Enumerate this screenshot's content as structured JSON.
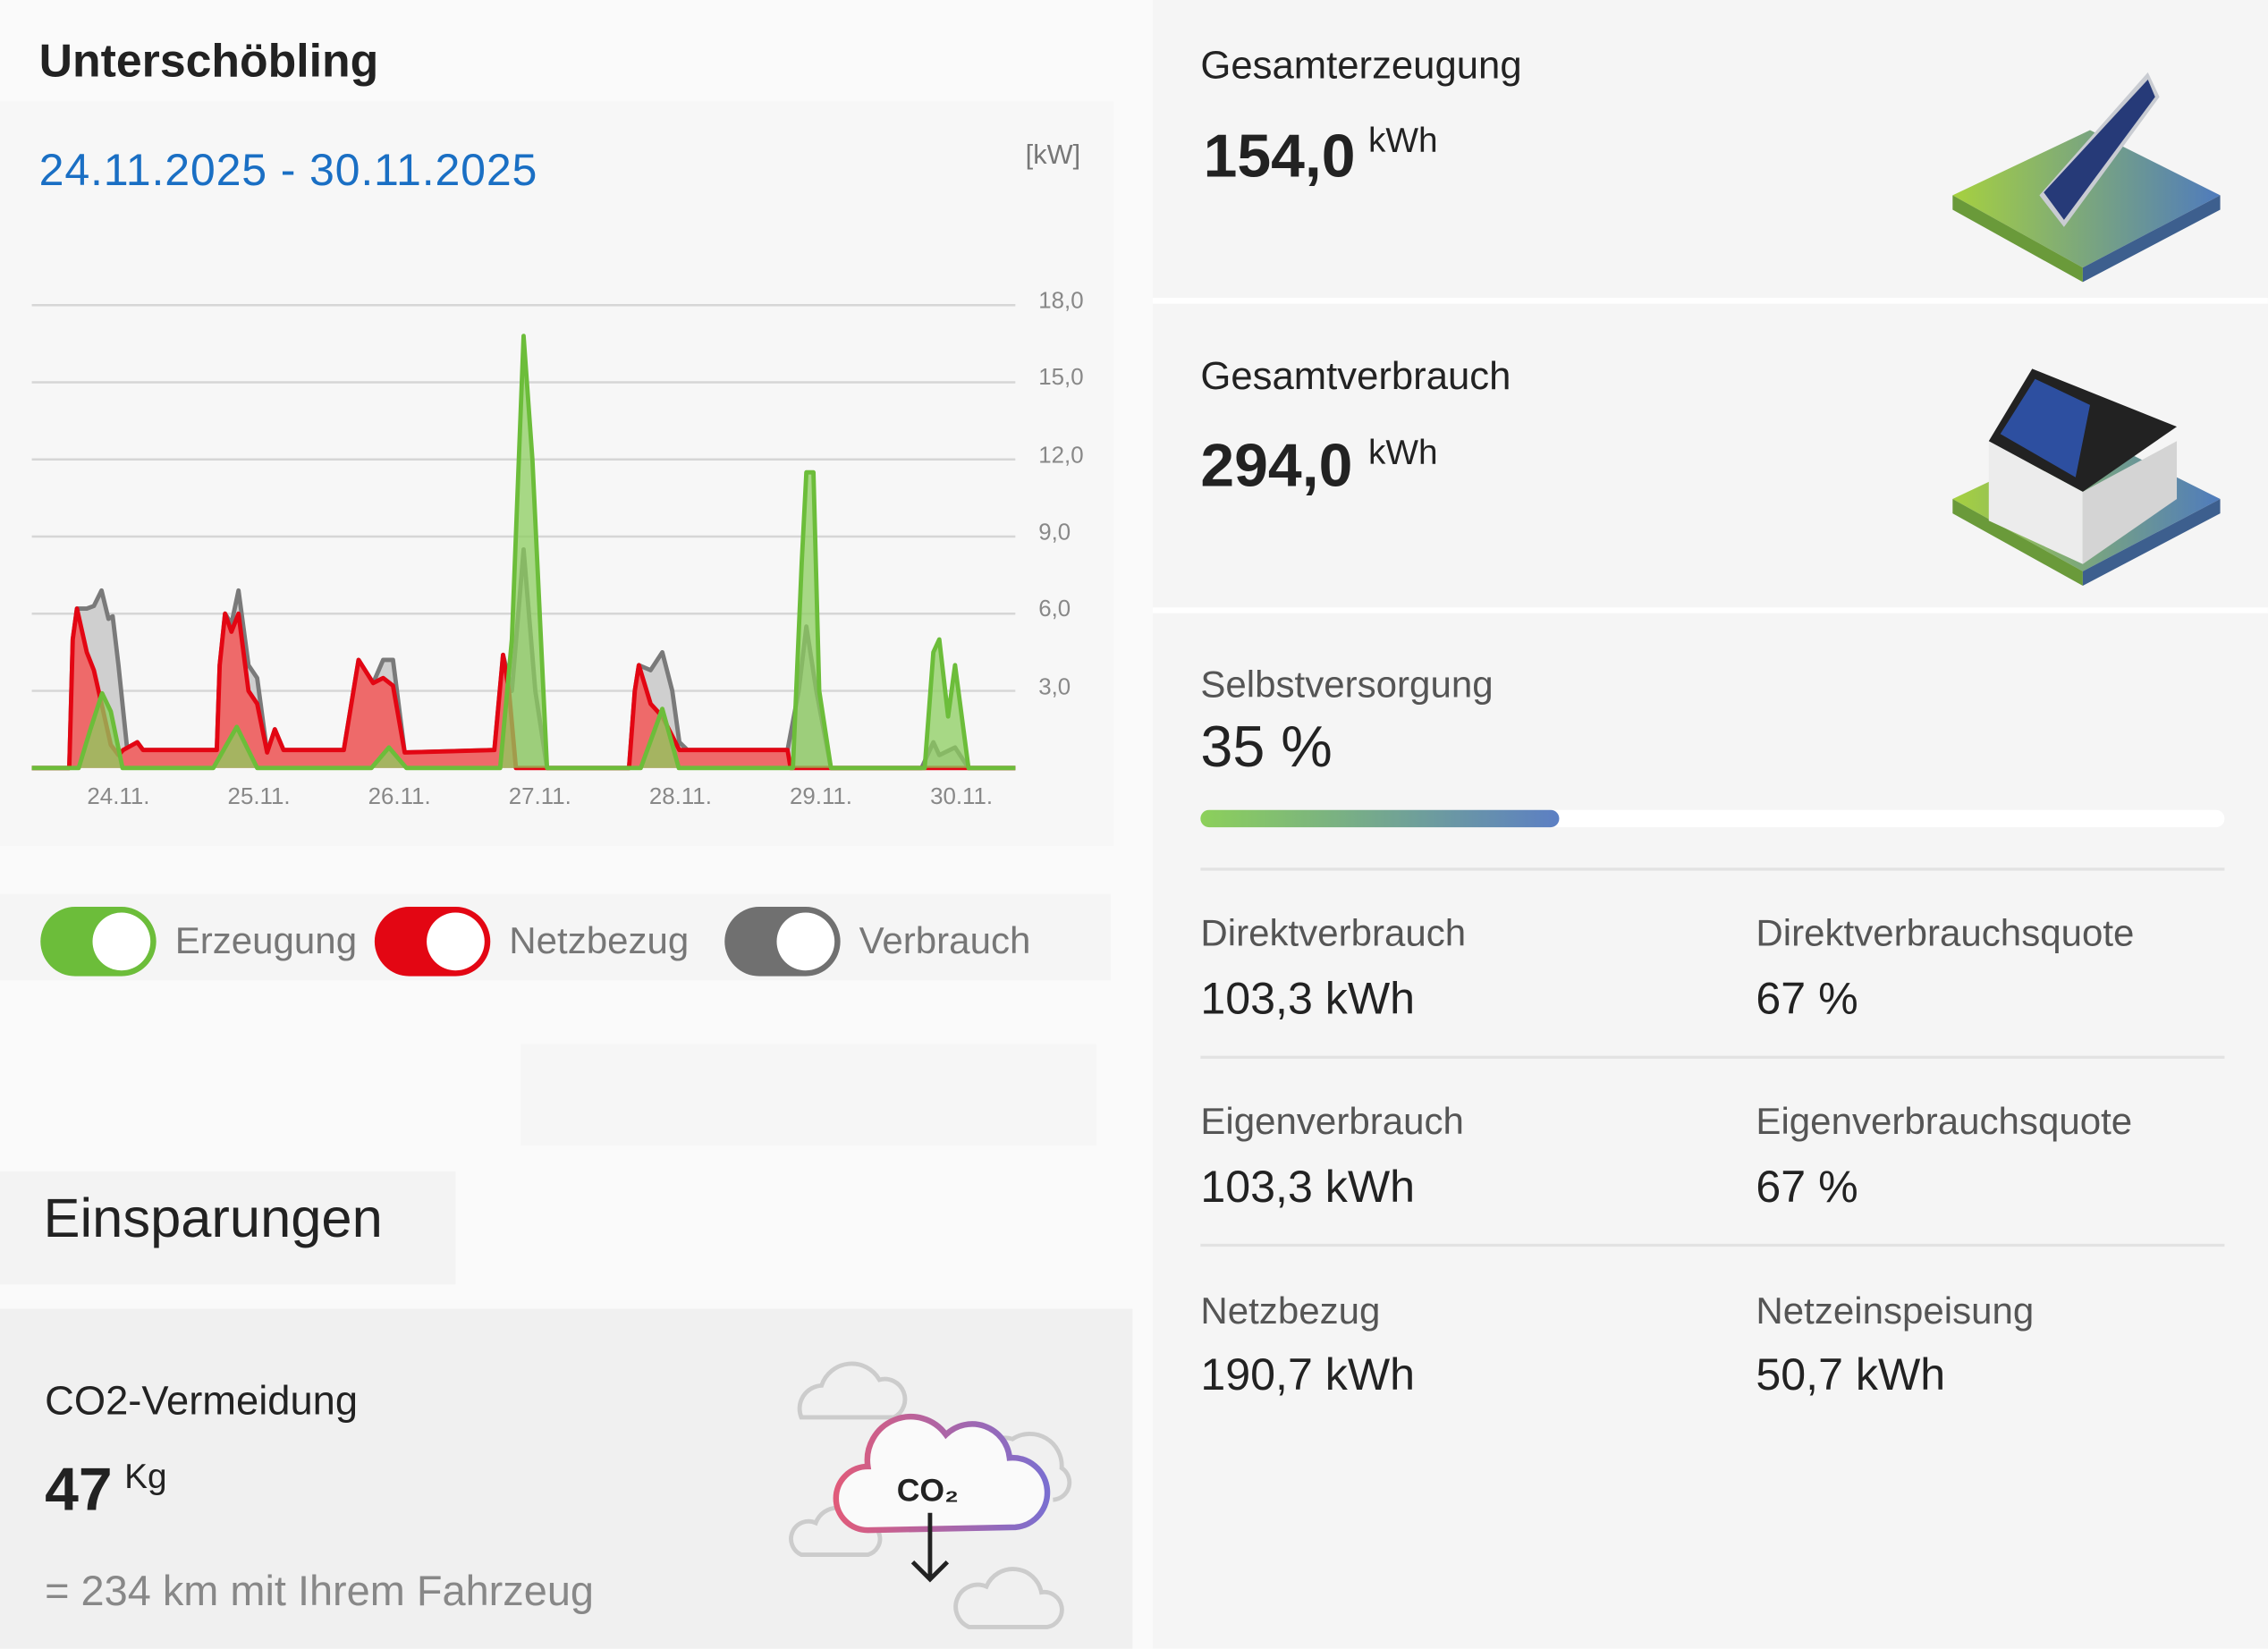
{
  "site_title": "Unterschöbling",
  "date_range": "24.11.2025 - 30.11.2025",
  "chart_data": {
    "type": "area",
    "unit_label": "[kW]",
    "x_unit": "hours since 24.11. 00:00 (approx.)",
    "xlim": [
      0,
      168
    ],
    "ylim": [
      0,
      18
    ],
    "yticks": [
      "3,0",
      "6,0",
      "9,0",
      "12,0",
      "15,0",
      "18,0"
    ],
    "ytick_values": [
      3,
      6,
      9,
      12,
      15,
      18
    ],
    "xticks": [
      "24.11.",
      "25.11.",
      "26.11.",
      "27.11.",
      "28.11.",
      "29.11.",
      "30.11."
    ],
    "xtick_values": [
      14.8,
      38.8,
      62.8,
      86.8,
      110.8,
      134.8,
      158.8
    ],
    "grid": true,
    "series": [
      {
        "name": "Verbrauch",
        "color": "#7a7a7a",
        "fill": "#cfcfcf",
        "points": [
          [
            0,
            0
          ],
          [
            6.4,
            0
          ],
          [
            7,
            5
          ],
          [
            7.7,
            6.2
          ],
          [
            9.4,
            6.2
          ],
          [
            10.6,
            6.3
          ],
          [
            11.9,
            6.9
          ],
          [
            13.1,
            5.8
          ],
          [
            13.8,
            5.9
          ],
          [
            14.8,
            4.0
          ],
          [
            16.3,
            0.7
          ],
          [
            18,
            1.0
          ],
          [
            19,
            0.7
          ],
          [
            31.6,
            0.7
          ],
          [
            32.1,
            4
          ],
          [
            33,
            6.0
          ],
          [
            34.1,
            5.6
          ],
          [
            35.3,
            6.9
          ],
          [
            37,
            4.0
          ],
          [
            38.5,
            3.5
          ],
          [
            40.2,
            0.6
          ],
          [
            41.5,
            1.5
          ],
          [
            43,
            0.7
          ],
          [
            53.3,
            0.7
          ],
          [
            55.8,
            4.2
          ],
          [
            58.3,
            3.3
          ],
          [
            60,
            4.2
          ],
          [
            61.7,
            4.2
          ],
          [
            63.7,
            0.6
          ],
          [
            79,
            0.7
          ],
          [
            80.5,
            4.4
          ],
          [
            82,
            3
          ],
          [
            84,
            8.5
          ],
          [
            86,
            3
          ],
          [
            88,
            0
          ],
          [
            102,
            0
          ],
          [
            103,
            3.0
          ],
          [
            103.7,
            4.0
          ],
          [
            105.7,
            3.8
          ],
          [
            107.7,
            4.5
          ],
          [
            109.4,
            3.0
          ],
          [
            110.6,
            1.0
          ],
          [
            112,
            0.7
          ],
          [
            129.1,
            0.7
          ],
          [
            131,
            3
          ],
          [
            132.3,
            5.5
          ],
          [
            134,
            3
          ],
          [
            136.5,
            0
          ],
          [
            152,
            0
          ],
          [
            154,
            1
          ],
          [
            155,
            0.5
          ],
          [
            157.7,
            0.8
          ],
          [
            160,
            0
          ],
          [
            168,
            0
          ]
        ]
      },
      {
        "name": "Netzbezug",
        "color": "#e30613",
        "fill": "#ee6a6a",
        "points": [
          [
            0,
            0
          ],
          [
            6.4,
            0
          ],
          [
            7,
            5
          ],
          [
            7.7,
            6.2
          ],
          [
            9.4,
            4.5
          ],
          [
            10.6,
            3.8
          ],
          [
            11.9,
            2.5
          ],
          [
            13.5,
            0.9
          ],
          [
            14.8,
            0.5
          ],
          [
            15.6,
            0.7
          ],
          [
            18,
            1.0
          ],
          [
            19,
            0.7
          ],
          [
            31.6,
            0.7
          ],
          [
            32.1,
            4
          ],
          [
            33,
            6.0
          ],
          [
            34.1,
            5.3
          ],
          [
            35.3,
            6.0
          ],
          [
            37,
            3.0
          ],
          [
            38.5,
            2.5
          ],
          [
            40.2,
            0.6
          ],
          [
            41.5,
            1.5
          ],
          [
            43,
            0.7
          ],
          [
            53.3,
            0.7
          ],
          [
            55.8,
            4.2
          ],
          [
            58.3,
            3.3
          ],
          [
            60,
            3.5
          ],
          [
            61.7,
            3.2
          ],
          [
            63.7,
            0.6
          ],
          [
            79,
            0.7
          ],
          [
            80.5,
            4.4
          ],
          [
            81.5,
            3.0
          ],
          [
            82.7,
            0
          ],
          [
            102,
            0
          ],
          [
            103,
            3.0
          ],
          [
            103.7,
            4.0
          ],
          [
            105.7,
            2.5
          ],
          [
            107.7,
            2.0
          ],
          [
            110.6,
            0.7
          ],
          [
            129.1,
            0.7
          ],
          [
            129.6,
            0
          ],
          [
            168,
            0
          ]
        ]
      },
      {
        "name": "Erzeugung",
        "color": "#6cbd3a",
        "fill": "rgba(140,205,95,0.75)",
        "points": [
          [
            0,
            0
          ],
          [
            8,
            0
          ],
          [
            10,
            1.5
          ],
          [
            12,
            2.9
          ],
          [
            13.5,
            2.2
          ],
          [
            15.5,
            0
          ],
          [
            31,
            0
          ],
          [
            35,
            1.6
          ],
          [
            38.5,
            0
          ],
          [
            58,
            0
          ],
          [
            61,
            0.8
          ],
          [
            64,
            0
          ],
          [
            80,
            0
          ],
          [
            82,
            5
          ],
          [
            84,
            16.8
          ],
          [
            85.5,
            12
          ],
          [
            88,
            0
          ],
          [
            104,
            0
          ],
          [
            107.7,
            2.3
          ],
          [
            110.5,
            0
          ],
          [
            130,
            0
          ],
          [
            131.5,
            8
          ],
          [
            132.3,
            11.5
          ],
          [
            133.5,
            11.5
          ],
          [
            134.5,
            3
          ],
          [
            136.5,
            0
          ],
          [
            152.5,
            0
          ],
          [
            154,
            4.5
          ],
          [
            155,
            5.0
          ],
          [
            156.5,
            2
          ],
          [
            157.7,
            4.0
          ],
          [
            160,
            0
          ],
          [
            168,
            0
          ]
        ]
      }
    ]
  },
  "legend": [
    {
      "label": "Erzeugung",
      "color": "#6cbd3a",
      "on": true
    },
    {
      "label": "Netzbezug",
      "color": "#e30613",
      "on": true
    },
    {
      "label": "Verbrauch",
      "color": "#707070",
      "on": true
    }
  ],
  "savings": {
    "heading": "Einsparungen",
    "co2_label": "CO2-Vermeidung",
    "co2_value": "47",
    "co2_unit": "Kg",
    "equivalent": "= 234 km mit Ihrem Fahrzeug",
    "icon_text": "CO₂"
  },
  "totals": {
    "generation_label": "Gesamterzeugung",
    "generation_value": "154,0",
    "generation_unit": "kWh",
    "consumption_label": "Gesamtverbrauch",
    "consumption_value": "294,0",
    "consumption_unit": "kWh"
  },
  "self_supply": {
    "label": "Selbstversorgung",
    "value": "35 %",
    "percent": 35
  },
  "stats": [
    {
      "label": "Direktverbrauch",
      "value": "103,3 kWh"
    },
    {
      "label": "Direktverbrauchsquote",
      "value": "67 %"
    },
    {
      "label": "Eigenverbrauch",
      "value": "103,3 kWh"
    },
    {
      "label": "Eigenverbrauchsquote",
      "value": "67 %"
    },
    {
      "label": "Netzbezug",
      "value": "190,7 kWh"
    },
    {
      "label": "Netzeinspeisung",
      "value": "50,7 kWh"
    }
  ]
}
